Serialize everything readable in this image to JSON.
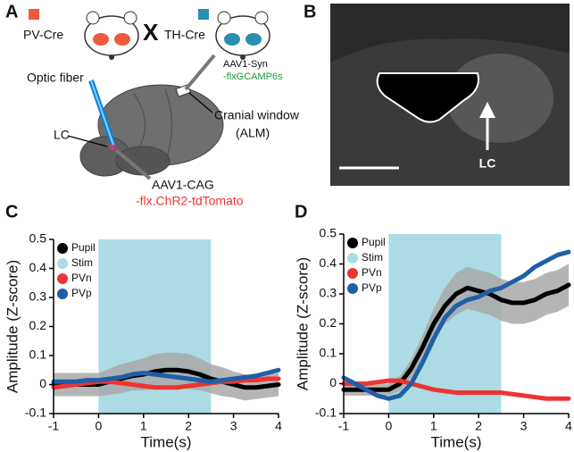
{
  "figure": {
    "panel_labels": [
      "A",
      "B",
      "C",
      "D"
    ],
    "diagram": {
      "cross_left": "PV-Cre",
      "cross_symbol": "X",
      "cross_right": "TH-Cre",
      "fiber": "Optic fiber",
      "virus_top": "AAV1-Syn",
      "virus_top_construct": "-flxGCAMP6s",
      "window": "Cranial window",
      "window_area": "(ALM)",
      "lc": "LC",
      "virus_bottom": "AAV1-CAG",
      "virus_bottom_construct": "-flx.ChR2-tdTomato"
    },
    "histology": {
      "lc": "LC"
    }
  },
  "chart_data": [
    {
      "type": "line",
      "xlabel": "Time(s)",
      "ylabel": "Amplitude (Z-score)",
      "x": [
        -1,
        -0.75,
        -0.5,
        -0.25,
        0,
        0.25,
        0.5,
        0.75,
        1,
        1.25,
        1.5,
        1.75,
        2,
        2.25,
        2.5,
        2.75,
        3,
        3.25,
        3.5,
        3.75,
        4
      ],
      "xlim": [
        -1,
        4
      ],
      "xticks": [
        -1,
        0,
        1,
        2,
        3,
        4
      ],
      "ylim": [
        -0.1,
        0.5
      ],
      "yticks": [
        -0.1,
        0,
        0.1,
        0.2,
        0.3,
        0.4,
        0.5
      ],
      "series": [
        {
          "name": "Pupil",
          "color": "#000000",
          "band_color": "#a8a8a8",
          "values": [
            0,
            0,
            0,
            0,
            0,
            0.01,
            0.02,
            0.03,
            0.035,
            0.045,
            0.05,
            0.05,
            0.045,
            0.035,
            0.02,
            0.01,
            0,
            -0.01,
            -0.01,
            -0.005,
            0
          ],
          "error": [
            0.04,
            0.04,
            0.04,
            0.04,
            0.04,
            0.045,
            0.05,
            0.05,
            0.055,
            0.06,
            0.06,
            0.06,
            0.06,
            0.055,
            0.05,
            0.05,
            0.045,
            0.045,
            0.04,
            0.04,
            0.04
          ]
        },
        {
          "name": "Stim",
          "color": "#acdbe4",
          "span": [
            0,
            2.5
          ]
        },
        {
          "name": "PVn",
          "color": "#ee3333",
          "values": [
            -0.01,
            -0.005,
            0,
            0.005,
            0.01,
            0.01,
            0.005,
            0,
            -0.005,
            -0.01,
            -0.01,
            -0.01,
            -0.005,
            0,
            0.005,
            0.01,
            0.01,
            0.015,
            0.015,
            0.02,
            0.02
          ]
        },
        {
          "name": "PVp",
          "color": "#1f5fa8",
          "values": [
            0.01,
            0.01,
            0.01,
            0.015,
            0.015,
            0.02,
            0.025,
            0.035,
            0.04,
            0.035,
            0.03,
            0.025,
            0.02,
            0.015,
            0.01,
            0.015,
            0.02,
            0.025,
            0.03,
            0.04,
            0.05
          ]
        }
      ]
    },
    {
      "type": "line",
      "xlabel": "Time(s)",
      "ylabel": "Amplitude (Z-score)",
      "x": [
        -1,
        -0.75,
        -0.5,
        -0.25,
        0,
        0.25,
        0.5,
        0.75,
        1,
        1.25,
        1.5,
        1.75,
        2,
        2.25,
        2.5,
        2.75,
        3,
        3.25,
        3.5,
        3.75,
        4
      ],
      "xlim": [
        -1,
        4
      ],
      "xticks": [
        -1,
        0,
        1,
        2,
        3,
        4
      ],
      "ylim": [
        -0.1,
        0.5
      ],
      "yticks": [
        -0.1,
        0,
        0.1,
        0.2,
        0.3,
        0.4,
        0.5
      ],
      "series": [
        {
          "name": "Pupil",
          "color": "#000000",
          "band_color": "#a8a8a8",
          "values": [
            -0.02,
            -0.02,
            -0.02,
            -0.02,
            -0.02,
            0,
            0.05,
            0.12,
            0.2,
            0.26,
            0.3,
            0.32,
            0.31,
            0.3,
            0.28,
            0.27,
            0.27,
            0.28,
            0.3,
            0.31,
            0.33
          ],
          "error": [
            0.02,
            0.02,
            0.02,
            0.02,
            0.02,
            0.025,
            0.03,
            0.04,
            0.05,
            0.06,
            0.07,
            0.07,
            0.07,
            0.07,
            0.07,
            0.07,
            0.07,
            0.07,
            0.07,
            0.07,
            0.07
          ]
        },
        {
          "name": "Stim",
          "color": "#acdbe4",
          "span": [
            0,
            2.5
          ]
        },
        {
          "name": "PVn",
          "color": "#ee3333",
          "values": [
            0,
            0,
            0,
            0.005,
            0.01,
            0.01,
            0,
            -0.01,
            -0.02,
            -0.025,
            -0.03,
            -0.03,
            -0.03,
            -0.03,
            -0.03,
            -0.035,
            -0.04,
            -0.045,
            -0.05,
            -0.05,
            -0.05
          ]
        },
        {
          "name": "PVp",
          "color": "#1f5fa8",
          "values": [
            0.02,
            0,
            -0.02,
            -0.04,
            -0.05,
            -0.04,
            0,
            0.07,
            0.15,
            0.22,
            0.26,
            0.28,
            0.29,
            0.31,
            0.32,
            0.34,
            0.36,
            0.39,
            0.41,
            0.43,
            0.44
          ]
        }
      ]
    }
  ]
}
